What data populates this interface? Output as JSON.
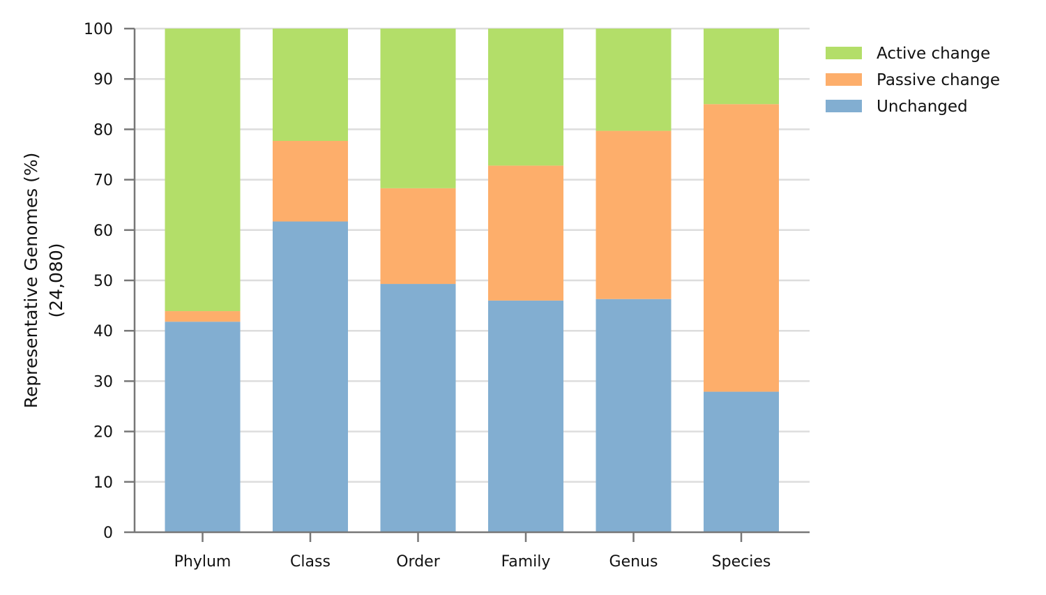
{
  "chart_data": {
    "type": "bar",
    "stacked": true,
    "title": "",
    "xlabel": "",
    "ylabel_lines": [
      "Representative Genomes (%)",
      "(24,080)"
    ],
    "ylim": [
      0,
      100
    ],
    "yticks": [
      0,
      10,
      20,
      30,
      40,
      50,
      60,
      70,
      80,
      90,
      100
    ],
    "grid": "horizontal",
    "legend_position": "top-right, outside plot",
    "categories": [
      "Phylum",
      "Class",
      "Order",
      "Family",
      "Genus",
      "Species"
    ],
    "series": [
      {
        "name": "Unchanged",
        "color": "#82aed1",
        "values": [
          41.8,
          61.7,
          49.3,
          46.0,
          46.3,
          27.9
        ]
      },
      {
        "name": "Passive change",
        "color": "#fdae6b",
        "values": [
          2.1,
          16.0,
          19.0,
          26.8,
          33.4,
          57.1
        ]
      },
      {
        "name": "Active change",
        "color": "#b3de69",
        "values": [
          56.1,
          22.3,
          31.7,
          27.2,
          20.3,
          15.0
        ]
      }
    ],
    "legend_order": [
      "Active change",
      "Passive change",
      "Unchanged"
    ]
  }
}
